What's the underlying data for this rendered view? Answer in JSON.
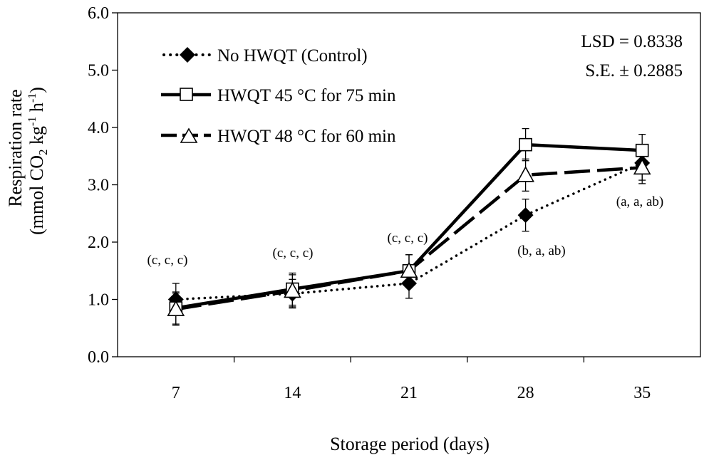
{
  "chart_data": {
    "type": "line",
    "title": "",
    "xlabel": "Storage period (days)",
    "ylabel_line1": "Respiration  rate",
    "ylabel_line2": {
      "prefix": "(mmol  CO",
      "sub": "2",
      "mid1": " kg",
      "sup1": "-1",
      "mid2": " h",
      "sup2": "-1",
      "suffix": ")"
    },
    "categories": [
      "7",
      "14",
      "21",
      "28",
      "35"
    ],
    "ylim": [
      0,
      6
    ],
    "yticks": [
      "0.0",
      "1.0",
      "2.0",
      "3.0",
      "4.0",
      "5.0",
      "6.0"
    ],
    "grid": false,
    "legend_position": "top-left",
    "series": [
      {
        "name": "No HWQT (Control)",
        "marker": "diamond",
        "line": "dotted",
        "values": [
          1.0,
          1.1,
          1.28,
          2.47,
          3.38
        ],
        "errors": [
          0.28,
          0.25,
          0.26,
          0.28,
          0.3
        ]
      },
      {
        "name": "HWQT  45 °C for 75 min",
        "marker": "square",
        "line": "solid",
        "values": [
          0.85,
          1.18,
          1.5,
          3.7,
          3.6
        ],
        "errors": [
          0.28,
          0.28,
          0.28,
          0.28,
          0.28
        ]
      },
      {
        "name": "HWQT 48 °C for 60 min",
        "marker": "triangle",
        "line": "dashed",
        "values": [
          0.83,
          1.15,
          1.5,
          3.17,
          3.3
        ],
        "errors": [
          0.28,
          0.28,
          0.28,
          0.28,
          0.28
        ]
      }
    ],
    "annotations": [
      "(c, c, c)",
      "(c, c, c)",
      "(c, c, c)",
      "(b, a, ab)",
      "(a, a, ab)"
    ],
    "stats": {
      "lsd": "LSD = 0.8338",
      "se": "S.E. ± 0.2885"
    }
  }
}
